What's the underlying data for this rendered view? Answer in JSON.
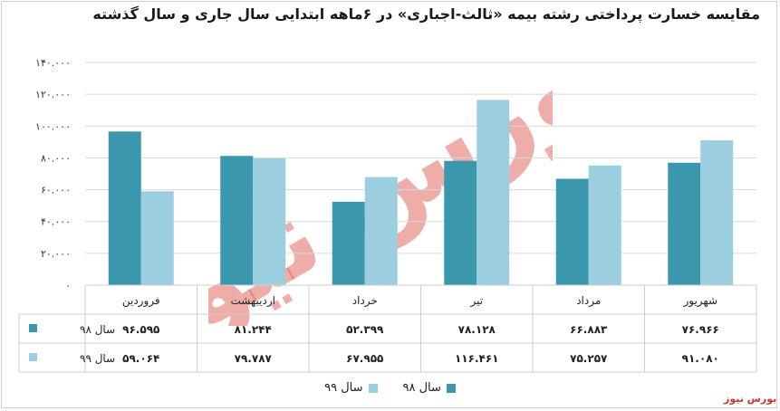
{
  "chart_data": {
    "type": "bar",
    "title": "مقایسه خسارت پرداختی رشته بیمه «ثالث-اجباری» در ۶ماهه ابتدایی سال جاری و سال گذشته",
    "categories": [
      "فروردین",
      "اردیبهشت",
      "خرداد",
      "تیر",
      "مرداد",
      "شهریور"
    ],
    "series": [
      {
        "name": "سال ۹۸",
        "color": "#3b97ac",
        "values": [
          96595,
          81244,
          52399,
          78128,
          66883,
          76966
        ],
        "labels": [
          "۹۶.۵۹۵",
          "۸۱.۲۴۴",
          "۵۲.۳۹۹",
          "۷۸.۱۲۸",
          "۶۶.۸۸۳",
          "۷۶.۹۶۶"
        ]
      },
      {
        "name": "سال ۹۹",
        "color": "#9bcfdf",
        "values": [
          59064,
          79787,
          67955,
          116461,
          75257,
          91080
        ],
        "labels": [
          "۵۹.۰۶۴",
          "۷۹.۷۸۷",
          "۶۷.۹۵۵",
          "۱۱۶.۴۶۱",
          "۷۵.۲۵۷",
          "۹۱.۰۸۰"
        ]
      }
    ],
    "ylim": [
      0,
      140000
    ],
    "yticks": [
      0,
      20000,
      40000,
      60000,
      80000,
      100000,
      120000,
      140000
    ],
    "ytick_labels": [
      "۰",
      "۲۰.۰۰۰",
      "۴۰.۰۰۰",
      "۶۰.۰۰۰",
      "۸۰.۰۰۰",
      "۱۰۰.۰۰۰",
      "۱۲۰.۰۰۰",
      "۱۴۰.۰۰۰"
    ],
    "grid": true,
    "legend": "bottom",
    "data_table": true
  },
  "watermark": "بورس نیوز",
  "brand": "بورس نیوز"
}
